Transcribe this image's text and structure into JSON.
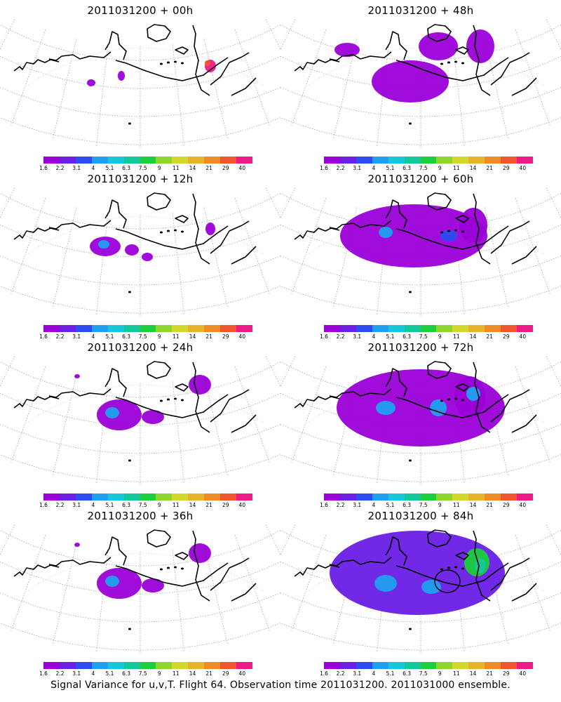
{
  "panels": [
    {
      "title": "2011031200 + 00h",
      "level": 1
    },
    {
      "title": "2011031200 + 48h",
      "level": 4
    },
    {
      "title": "2011031200 + 12h",
      "level": 2
    },
    {
      "title": "2011031200 + 60h",
      "level": 5
    },
    {
      "title": "2011031200 + 24h",
      "level": 3
    },
    {
      "title": "2011031200 + 72h",
      "level": 6
    },
    {
      "title": "2011031200 + 36h",
      "level": 3
    },
    {
      "title": "2011031200 + 84h",
      "level": 7
    }
  ],
  "colorbar": {
    "labels": [
      "1.6",
      "2.2",
      "3.1",
      "4",
      "5.1",
      "6.3",
      "7.5",
      "9",
      "11",
      "14",
      "21",
      "29",
      "40"
    ],
    "colors": [
      "#9b00d8",
      "#6a1ee6",
      "#2b4cf0",
      "#1fa0f0",
      "#16c7d8",
      "#14c79a",
      "#18cf3c",
      "#8cd62c",
      "#d6d629",
      "#e6b42a",
      "#ee8c28",
      "#f0552e",
      "#f01a8c"
    ]
  },
  "caption": "Signal Variance for u,v,T. Flight 64. Observation time 2011031200. 2011031000 ensemble."
}
